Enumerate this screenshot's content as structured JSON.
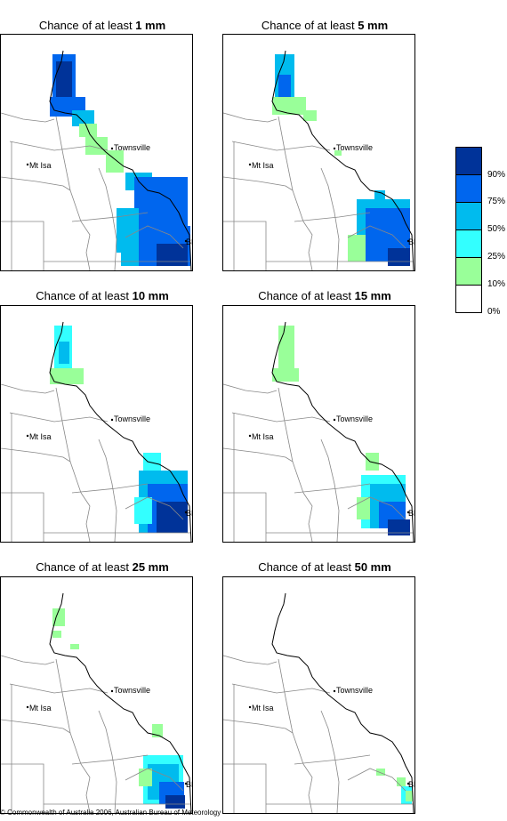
{
  "panels": [
    {
      "title_prefix": "Chance of at least ",
      "amount": "1 mm",
      "level": 1
    },
    {
      "title_prefix": "Chance of at least ",
      "amount": "5 mm",
      "level": 2
    },
    {
      "title_prefix": "Chance of at least ",
      "amount": "10 mm",
      "level": 3
    },
    {
      "title_prefix": "Chance of at least ",
      "amount": "15 mm",
      "level": 4
    },
    {
      "title_prefix": "Chance of at least ",
      "amount": "25 mm",
      "level": 5
    },
    {
      "title_prefix": "Chance of at least ",
      "amount": "50 mm",
      "level": 6
    }
  ],
  "places": {
    "townsville": "Townsville",
    "mt_isa": "Mt Isa",
    "bris": "BRIS"
  },
  "legend": {
    "labels": [
      "90%",
      "75%",
      "50%",
      "25%",
      "10%",
      "0%"
    ],
    "colors": [
      "#003399",
      "#0066ee",
      "#00bbee",
      "#33ffff",
      "#99ff99",
      "#ffffff"
    ]
  },
  "footer": "© Commonwealth of Australia 2006, Australian Bureau of Meteorology"
}
